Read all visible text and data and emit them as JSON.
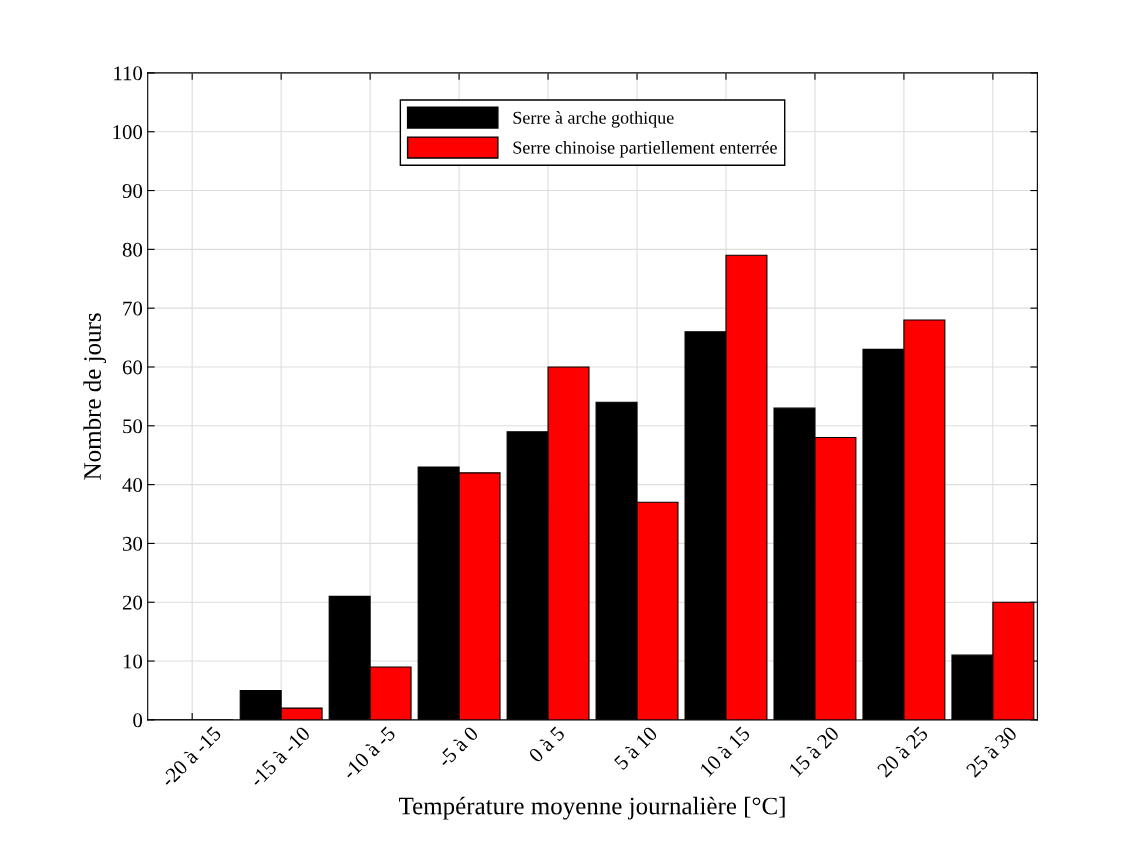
{
  "chart_data": {
    "type": "bar",
    "xlabel": "Température moyenne journalière [°C]",
    "ylabel": "Nombre de jours",
    "categories": [
      "-20 à -15",
      "-15 à -10",
      "-10 à -5",
      "-5 à 0",
      "0 à 5",
      "5 à 10",
      "10 à 15",
      "15 à 20",
      "20 à 25",
      "25 à 30"
    ],
    "series": [
      {
        "name": "Serre à arche gothique",
        "color": "#000000",
        "values": [
          0,
          5,
          21,
          43,
          49,
          54,
          66,
          53,
          63,
          11
        ]
      },
      {
        "name": "Serre chinoise partiellement enterrée",
        "color": "#ff0000",
        "values": [
          0,
          2,
          9,
          42,
          60,
          37,
          79,
          48,
          68,
          20
        ]
      }
    ],
    "ylim": [
      0,
      110
    ],
    "yticks": [
      0,
      10,
      20,
      30,
      40,
      50,
      60,
      70,
      80,
      90,
      100,
      110
    ],
    "grid": true,
    "legend": "top"
  }
}
